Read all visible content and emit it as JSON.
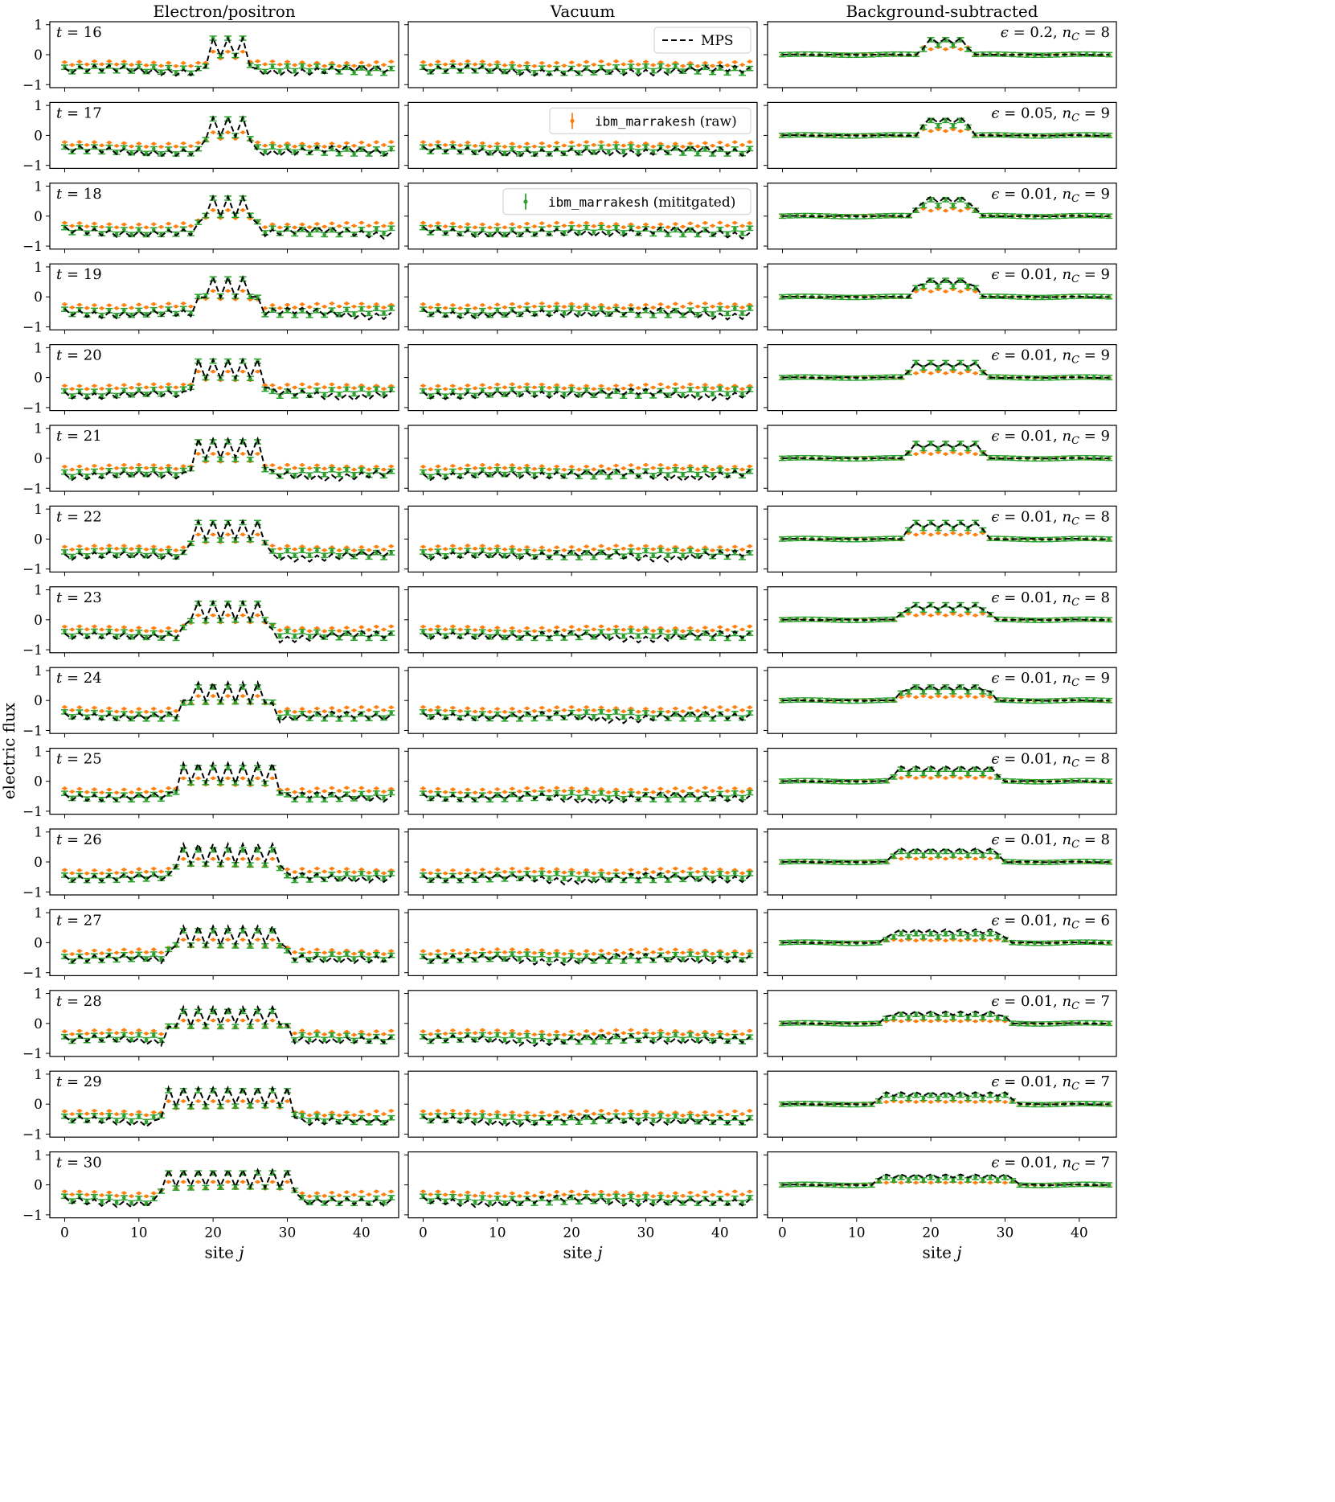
{
  "column_titles": [
    "Electron/positron",
    "Vacuum",
    "Background-subtracted"
  ],
  "ylabel": "electric flux",
  "xlabel": "site j",
  "xlabel_base": "site",
  "xlabel_var": "j",
  "x_ticks": [
    0,
    10,
    20,
    30,
    40
  ],
  "y_ticks": [
    1,
    0,
    -1
  ],
  "legend": [
    {
      "label": "MPS",
      "color": "#000000",
      "style": "dashed"
    },
    {
      "label_mono": "ibm_marrakesh",
      "label_rest": "(raw)",
      "color": "#ff7f0e",
      "style": "errorbar"
    },
    {
      "label_mono": "ibm_marrakesh",
      "label_rest": "(mititgated)",
      "color": "#2ca02c",
      "style": "errorbar"
    }
  ],
  "rows": [
    {
      "t": 16,
      "t_label": "t = 16",
      "eps": "0.2",
      "nC": 8,
      "annot": "ϵ = 0.2, n_C = 8"
    },
    {
      "t": 17,
      "t_label": "t = 17",
      "eps": "0.05",
      "nC": 9,
      "annot": "ϵ = 0.05, n_C = 9"
    },
    {
      "t": 18,
      "t_label": "t = 18",
      "eps": "0.01",
      "nC": 9,
      "annot": "ϵ = 0.01, n_C = 9"
    },
    {
      "t": 19,
      "t_label": "t = 19",
      "eps": "0.01",
      "nC": 9,
      "annot": "ϵ = 0.01, n_C = 9"
    },
    {
      "t": 20,
      "t_label": "t = 20",
      "eps": "0.01",
      "nC": 9,
      "annot": "ϵ = 0.01, n_C = 9"
    },
    {
      "t": 21,
      "t_label": "t = 21",
      "eps": "0.01",
      "nC": 9,
      "annot": "ϵ = 0.01, n_C = 9"
    },
    {
      "t": 22,
      "t_label": "t = 22",
      "eps": "0.01",
      "nC": 8,
      "annot": "ϵ = 0.01, n_C = 8"
    },
    {
      "t": 23,
      "t_label": "t = 23",
      "eps": "0.01",
      "nC": 8,
      "annot": "ϵ = 0.01, n_C = 8"
    },
    {
      "t": 24,
      "t_label": "t = 24",
      "eps": "0.01",
      "nC": 9,
      "annot": "ϵ = 0.01, n_C = 9"
    },
    {
      "t": 25,
      "t_label": "t = 25",
      "eps": "0.01",
      "nC": 8,
      "annot": "ϵ = 0.01, n_C = 8"
    },
    {
      "t": 26,
      "t_label": "t = 26",
      "eps": "0.01",
      "nC": 8,
      "annot": "ϵ = 0.01, n_C = 8"
    },
    {
      "t": 27,
      "t_label": "t = 27",
      "eps": "0.01",
      "nC": 6,
      "annot": "ϵ = 0.01, n_C = 6"
    },
    {
      "t": 28,
      "t_label": "t = 28",
      "eps": "0.01",
      "nC": 7,
      "annot": "ϵ = 0.01, n_C = 7"
    },
    {
      "t": 29,
      "t_label": "t = 29",
      "eps": "0.01",
      "nC": 7,
      "annot": "ϵ = 0.01, n_C = 7"
    },
    {
      "t": 30,
      "t_label": "t = 30",
      "eps": "0.01",
      "nC": 7,
      "annot": "ϵ = 0.01, n_C = 7"
    }
  ],
  "chart_data": {
    "type": "line",
    "layout": "15 rows x 3 columns",
    "xlim": [
      -2,
      45
    ],
    "ylim": [
      -1.1,
      1.1
    ],
    "sites": [
      0,
      44
    ],
    "series_names": [
      "MPS",
      "ibm_marrakesh (raw)",
      "ibm_marrakesh (mititgated)"
    ],
    "panels_summary": [
      {
        "t": 16,
        "ee_peak_mps": 0.55,
        "ee_peak_raw": 0.1,
        "ee_peak_mit": 0.55,
        "bg_peak_mps": 0.55,
        "bg_peak_raw": 0.25,
        "bg_peak_mit": 0.5,
        "peak_center": 22,
        "peak_halfwidth": 2
      },
      {
        "t": 17,
        "ee_peak_mps": 0.6,
        "ee_peak_raw": 0.1,
        "ee_peak_mit": 0.55,
        "bg_peak_mps": 0.6,
        "bg_peak_raw": 0.2,
        "bg_peak_mit": 0.5,
        "peak_center": 22,
        "peak_halfwidth": 2.5
      },
      {
        "t": 18,
        "ee_peak_mps": 0.65,
        "ee_peak_raw": 0.2,
        "ee_peak_mit": 0.6,
        "bg_peak_mps": 0.65,
        "bg_peak_raw": 0.25,
        "bg_peak_mit": 0.55,
        "peak_center": 22,
        "peak_halfwidth": 3
      },
      {
        "t": 19,
        "ee_peak_mps": 0.65,
        "ee_peak_raw": 0.2,
        "ee_peak_mit": 0.6,
        "bg_peak_mps": 0.6,
        "bg_peak_raw": 0.25,
        "bg_peak_mit": 0.55,
        "peak_center": 22,
        "peak_halfwidth": 3.5
      },
      {
        "t": 20,
        "ee_peak_mps": 0.6,
        "ee_peak_raw": 0.2,
        "ee_peak_mit": 0.55,
        "bg_peak_mps": 0.5,
        "bg_peak_raw": 0.2,
        "bg_peak_mit": 0.5,
        "peak_center": 22,
        "peak_halfwidth": 4
      },
      {
        "t": 21,
        "ee_peak_mps": 0.65,
        "ee_peak_raw": 0.15,
        "ee_peak_mit": 0.55,
        "bg_peak_mps": 0.5,
        "bg_peak_raw": 0.2,
        "bg_peak_mit": 0.5,
        "peak_center": 22,
        "peak_halfwidth": 4
      },
      {
        "t": 22,
        "ee_peak_mps": 0.6,
        "ee_peak_raw": 0.15,
        "ee_peak_mit": 0.55,
        "bg_peak_mps": 0.55,
        "bg_peak_raw": 0.2,
        "bg_peak_mit": 0.55,
        "peak_center": 22,
        "peak_halfwidth": 4.5
      },
      {
        "t": 23,
        "ee_peak_mps": 0.6,
        "ee_peak_raw": 0.15,
        "ee_peak_mit": 0.55,
        "bg_peak_mps": 0.5,
        "bg_peak_raw": 0.2,
        "bg_peak_mit": 0.5,
        "peak_center": 22,
        "peak_halfwidth": 5
      },
      {
        "t": 24,
        "ee_peak_mps": 0.6,
        "ee_peak_raw": 0.15,
        "ee_peak_mit": 0.45,
        "bg_peak_mps": 0.5,
        "bg_peak_raw": 0.15,
        "bg_peak_mit": 0.45,
        "peak_center": 22,
        "peak_halfwidth": 5.5
      },
      {
        "t": 25,
        "ee_peak_mps": 0.6,
        "ee_peak_raw": 0.1,
        "ee_peak_mit": 0.45,
        "bg_peak_mps": 0.5,
        "bg_peak_raw": 0.15,
        "bg_peak_mit": 0.4,
        "peak_center": 22,
        "peak_halfwidth": 6
      },
      {
        "t": 26,
        "ee_peak_mps": 0.6,
        "ee_peak_raw": 0.1,
        "ee_peak_mit": 0.4,
        "bg_peak_mps": 0.45,
        "bg_peak_raw": 0.15,
        "bg_peak_mit": 0.35,
        "peak_center": 22,
        "peak_halfwidth": 6.5
      },
      {
        "t": 27,
        "ee_peak_mps": 0.55,
        "ee_peak_raw": 0.1,
        "ee_peak_mit": 0.4,
        "bg_peak_mps": 0.45,
        "bg_peak_raw": 0.1,
        "bg_peak_mit": 0.3,
        "peak_center": 22,
        "peak_halfwidth": 7
      },
      {
        "t": 28,
        "ee_peak_mps": 0.55,
        "ee_peak_raw": 0.1,
        "ee_peak_mit": 0.4,
        "bg_peak_mps": 0.4,
        "bg_peak_raw": 0.1,
        "bg_peak_mit": 0.3,
        "peak_center": 22,
        "peak_halfwidth": 7.5
      },
      {
        "t": 29,
        "ee_peak_mps": 0.55,
        "ee_peak_raw": 0.1,
        "ee_peak_mit": 0.45,
        "bg_peak_mps": 0.4,
        "bg_peak_raw": 0.1,
        "bg_peak_mit": 0.3,
        "peak_center": 22,
        "peak_halfwidth": 8
      },
      {
        "t": 30,
        "ee_peak_mps": 0.5,
        "ee_peak_raw": 0.1,
        "ee_peak_mit": 0.4,
        "bg_peak_mps": 0.35,
        "bg_peak_raw": 0.1,
        "bg_peak_mit": 0.25,
        "peak_center": 22,
        "peak_halfwidth": 8.5
      }
    ],
    "vacuum_levels": {
      "raw": -0.3,
      "mitigated": -0.5,
      "mps": -0.55
    }
  }
}
